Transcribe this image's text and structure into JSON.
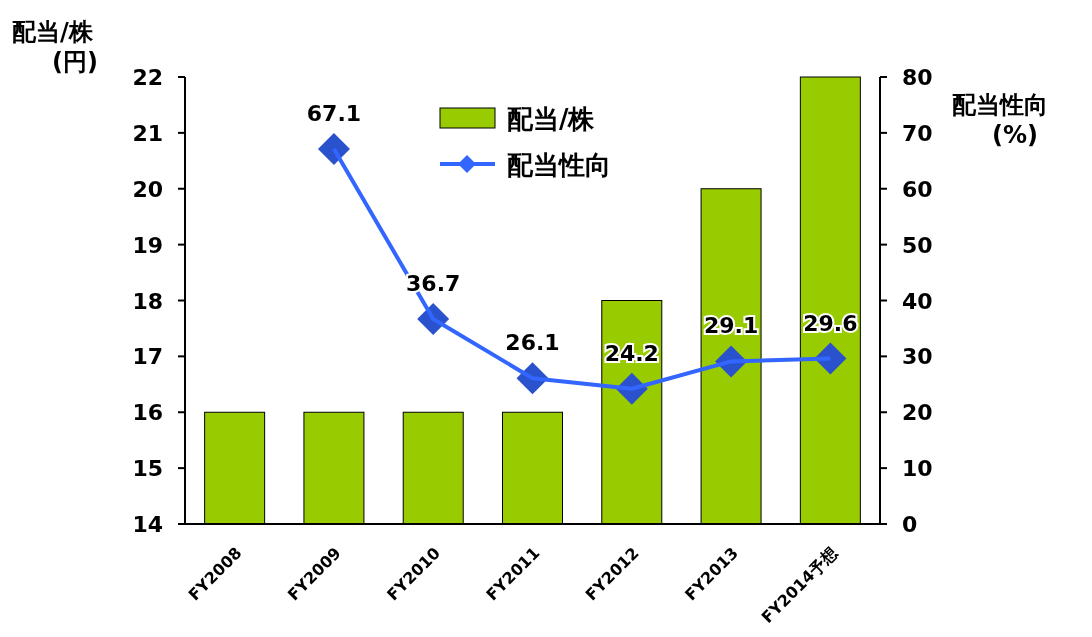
{
  "chart_data": {
    "type": "bar",
    "ylabel": "配当/株 (円)",
    "y2label": "配当性向 (%)",
    "categories": [
      "FY2008",
      "FY2009",
      "FY2010",
      "FY2011",
      "FY2012",
      "FY2013",
      "FY2014予想"
    ],
    "series": [
      {
        "name": "配当/株",
        "color": "#99cc00",
        "values": [
          16,
          16,
          16,
          16,
          18,
          20,
          22
        ]
      },
      {
        "name": "配当性向",
        "type": "line",
        "axis": "y2",
        "color": "#3366ff",
        "marker": "diamond",
        "values": [
          null,
          67.1,
          36.7,
          26.1,
          24.2,
          29.1,
          29.6
        ],
        "value_labels": [
          null,
          "67.1",
          "36.7",
          "26.1",
          "24.2",
          "29.1",
          "29.6"
        ]
      }
    ],
    "ylim": [
      14,
      22
    ],
    "yticks": [
      14,
      15,
      16,
      17,
      18,
      19,
      20,
      21,
      22
    ],
    "y2lim": [
      0,
      80
    ],
    "y2ticks": [
      0,
      10,
      20,
      30,
      40,
      50,
      60,
      70,
      80
    ],
    "legend": "top",
    "grid": false
  }
}
